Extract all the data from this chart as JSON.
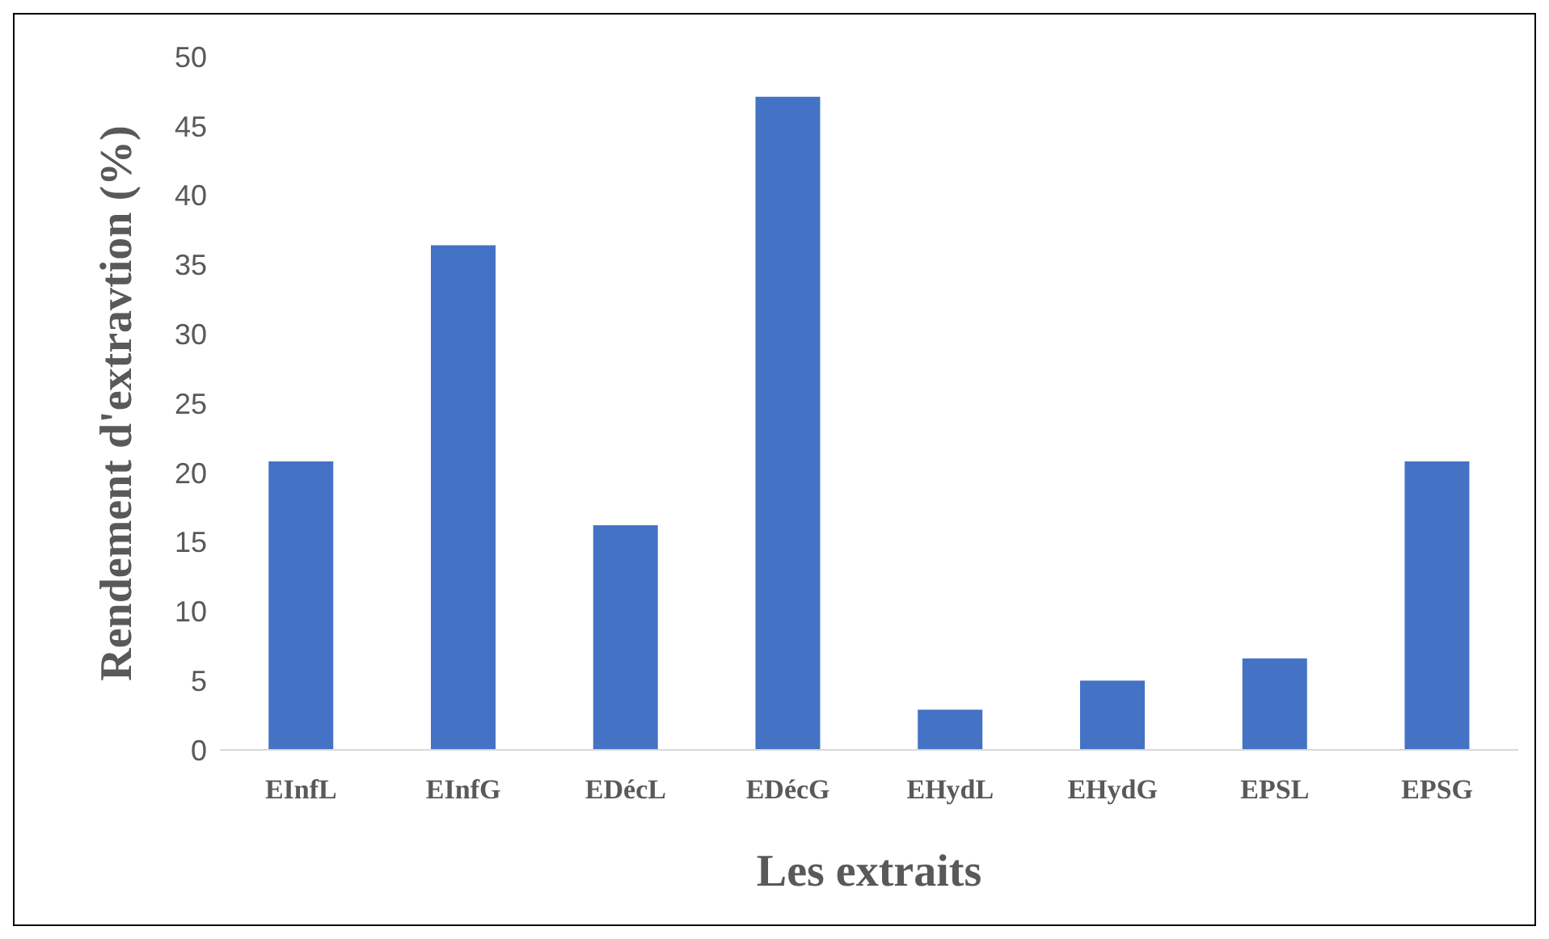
{
  "chart_data": {
    "type": "bar",
    "xlabel": "Les extraits",
    "ylabel": "Rendement d'extravtion  (%)",
    "categories": [
      "EInfL",
      "EInfG",
      "EDécL",
      "EDécG",
      "EHydL",
      "EHydG",
      "EPSL",
      "EPSG"
    ],
    "values": [
      20.8,
      36.4,
      16.2,
      47.1,
      2.9,
      5.0,
      6.6,
      20.8
    ],
    "color": "#4472c4",
    "ylim": [
      0,
      50
    ],
    "yticks": [
      0,
      5,
      10,
      15,
      20,
      25,
      30,
      35,
      40,
      45,
      50
    ],
    "grid": false,
    "legend": false
  }
}
